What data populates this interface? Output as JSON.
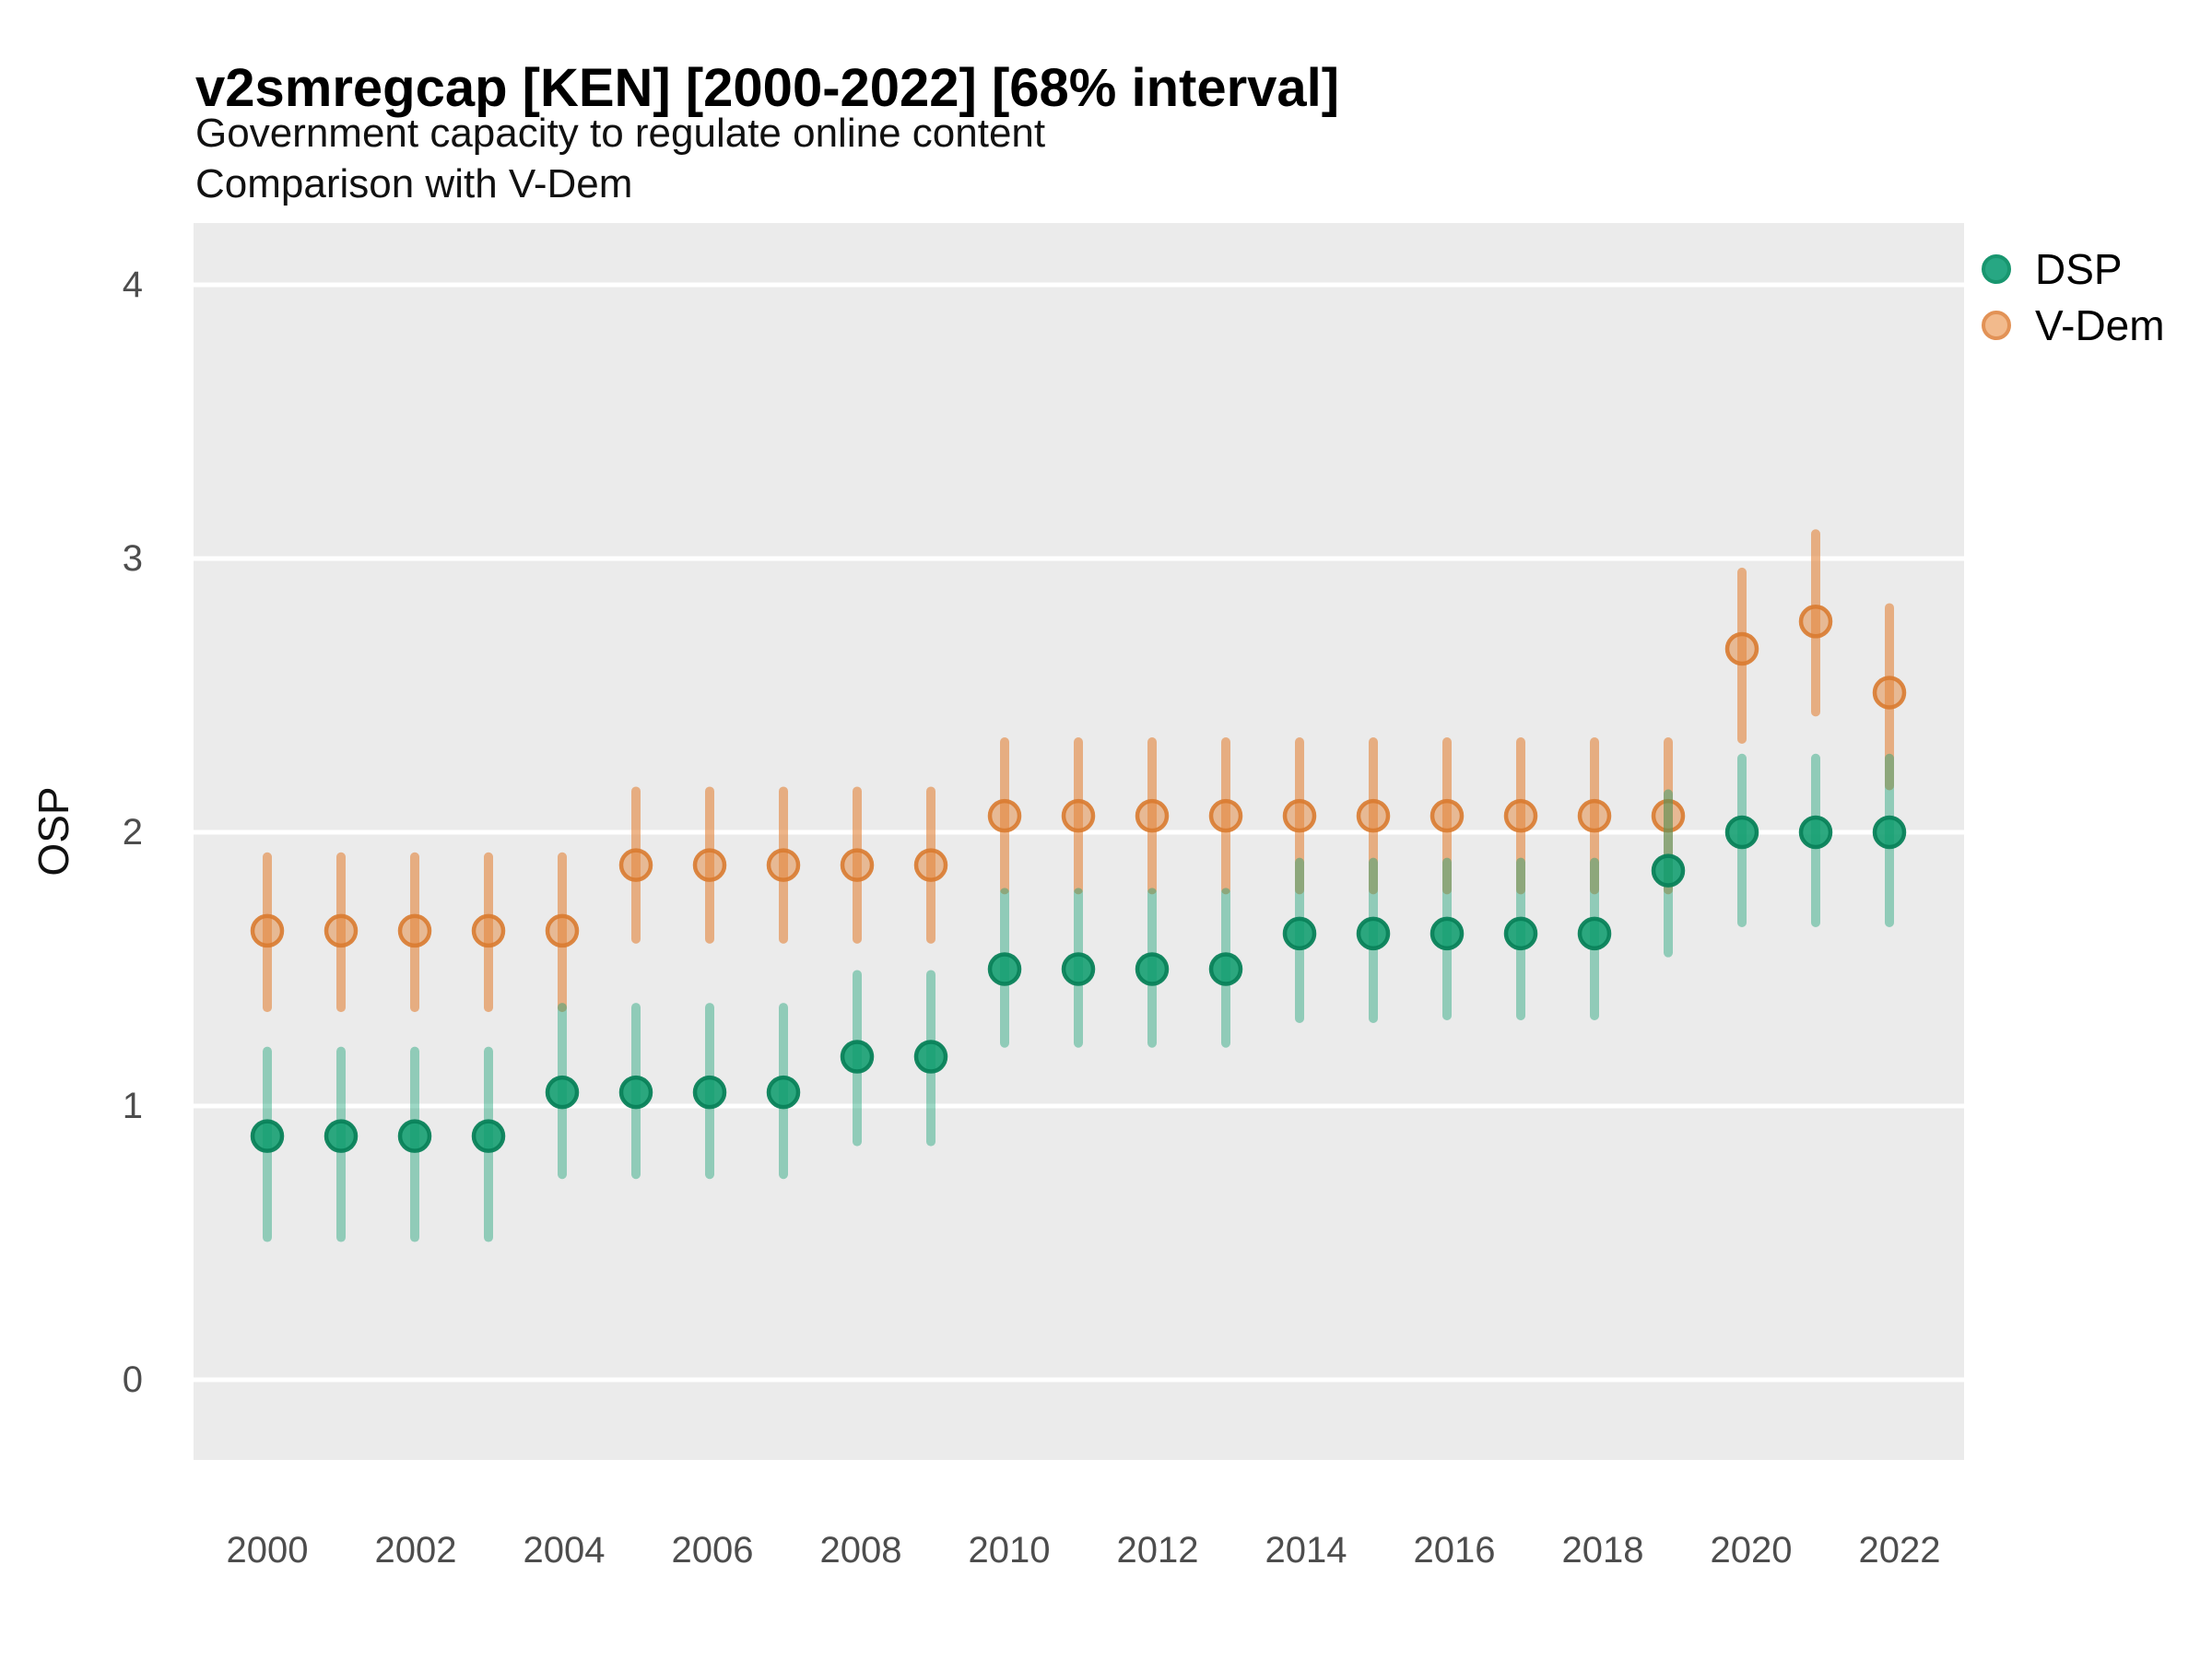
{
  "title": "v2smregcap [KEN] [2000-2022] [68% interval]",
  "subtitle": "Government capacity to regulate online content",
  "subtitle2": "Comparison with V-Dem",
  "axes": {
    "y_label": "OSP",
    "y_ticks": [
      "4",
      "3",
      "2",
      "1",
      "0"
    ],
    "x_ticks": [
      "2000",
      "2002",
      "2004",
      "2006",
      "2008",
      "2010",
      "2012",
      "2014",
      "2016",
      "2018",
      "2020",
      "2022"
    ]
  },
  "legend": {
    "items": [
      {
        "label": "DSP",
        "fill": "#27A783",
        "stroke": "#18966F"
      },
      {
        "label": "V-Dem",
        "fill": "#F2BA8C",
        "stroke": "#E29256"
      }
    ]
  },
  "colors": {
    "panel_background": "#EBEBEB",
    "gridline": "#FFFFFF",
    "dsp_green": "#15A076",
    "vdem_orange": "#E2843A"
  },
  "chart_data": {
    "type": "scatter",
    "subtype": "pointrange (point estimate with 68% credible interval error bars)",
    "title": "v2smregcap [KEN] [2000-2022] [68% interval]",
    "subtitle": "Government capacity to regulate online content / Comparison with V-Dem",
    "xlabel": "",
    "ylabel": "OSP",
    "ylim": [
      -0.3,
      4.3
    ],
    "xlim": [
      1999,
      2023
    ],
    "grid": "horizontal white gridlines at 0,1,2,3,4 on gray panel",
    "legend_position": "right-top",
    "x": [
      2000,
      2001,
      2002,
      2003,
      2004,
      2005,
      2006,
      2007,
      2008,
      2009,
      2010,
      2011,
      2012,
      2013,
      2014,
      2015,
      2016,
      2017,
      2018,
      2019,
      2020,
      2021,
      2022
    ],
    "series": [
      {
        "name": "DSP",
        "bar_color": "rgba(20,160,115,0.42)",
        "point_fill": "rgba(16,157,110,0.88)",
        "point_stroke": "rgba(10,130,90,0.95)",
        "est": [
          0.89,
          0.89,
          0.89,
          0.89,
          1.05,
          1.05,
          1.05,
          1.05,
          1.18,
          1.18,
          1.5,
          1.5,
          1.5,
          1.5,
          1.63,
          1.63,
          1.63,
          1.63,
          1.63,
          1.86,
          2.0,
          2.0,
          2.0
        ],
        "lo": [
          0.52,
          0.52,
          0.52,
          0.52,
          0.75,
          0.75,
          0.75,
          0.75,
          0.87,
          0.87,
          1.23,
          1.23,
          1.23,
          1.23,
          1.32,
          1.32,
          1.33,
          1.33,
          1.33,
          1.56,
          1.67,
          1.67,
          1.67
        ],
        "hi": [
          1.2,
          1.2,
          1.2,
          1.2,
          1.36,
          1.36,
          1.36,
          1.36,
          1.48,
          1.48,
          1.78,
          1.78,
          1.78,
          1.78,
          1.89,
          1.89,
          1.89,
          1.89,
          1.89,
          2.14,
          2.27,
          2.27,
          2.27
        ]
      },
      {
        "name": "V-Dem",
        "bar_color": "rgba(226,132,58,0.6)",
        "point_fill": "rgba(228,136,62,0.5)",
        "point_stroke": "rgba(217,123,48,0.9)",
        "est": [
          1.64,
          1.64,
          1.64,
          1.64,
          1.64,
          1.88,
          1.88,
          1.88,
          1.88,
          1.88,
          2.06,
          2.06,
          2.06,
          2.06,
          2.06,
          2.06,
          2.06,
          2.06,
          2.06,
          2.06,
          2.67,
          2.77,
          2.51
        ],
        "lo": [
          1.36,
          1.36,
          1.36,
          1.36,
          1.36,
          1.61,
          1.61,
          1.61,
          1.61,
          1.61,
          1.79,
          1.79,
          1.79,
          1.79,
          1.79,
          1.79,
          1.79,
          1.79,
          1.79,
          1.79,
          2.34,
          2.44,
          2.17
        ],
        "hi": [
          1.91,
          1.91,
          1.91,
          1.91,
          1.91,
          2.15,
          2.15,
          2.15,
          2.15,
          2.15,
          2.33,
          2.33,
          2.33,
          2.33,
          2.33,
          2.33,
          2.33,
          2.33,
          2.33,
          2.33,
          2.95,
          3.09,
          2.82
        ]
      }
    ]
  }
}
